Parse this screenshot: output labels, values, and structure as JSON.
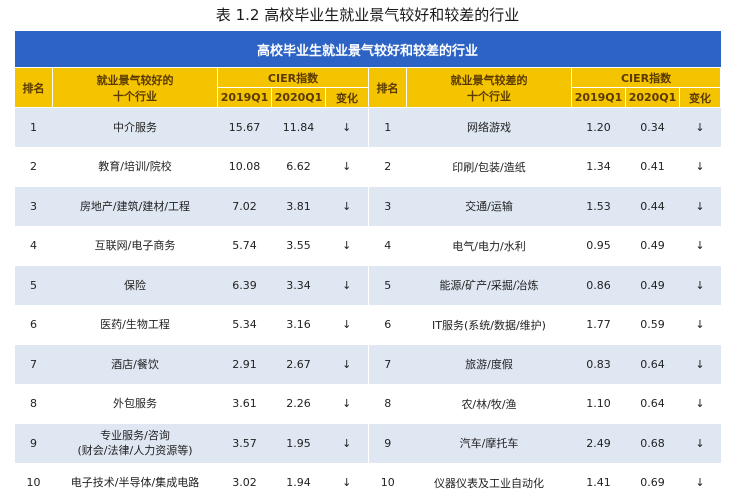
{
  "caption": "表 1.2  高校毕业生就业景气较好和较差的行业",
  "banner": "高校毕业生就业景气较好和较差的行业",
  "headers": {
    "rank": "排名",
    "good_industry_l1": "就业景气较好的",
    "good_industry_l2": "十个行业",
    "bad_industry_l1": "就业景气较差的",
    "bad_industry_l2": "十个行业",
    "cier": "CIER指数",
    "q2019": "2019Q1",
    "q2020": "2020Q1",
    "change": "变化"
  },
  "rows": [
    {
      "rank_good": "1",
      "good": "中介服务",
      "good_2019": "15.67",
      "good_2020": "11.84",
      "good_change": "↓",
      "rank_bad": "1",
      "bad": "网络游戏",
      "bad_2019": "1.20",
      "bad_2020": "0.34",
      "bad_change": "↓"
    },
    {
      "rank_good": "2",
      "good": "教育/培训/院校",
      "good_2019": "10.08",
      "good_2020": "6.62",
      "good_change": "↓",
      "rank_bad": "2",
      "bad": "印刷/包装/造纸",
      "bad_2019": "1.34",
      "bad_2020": "0.41",
      "bad_change": "↓"
    },
    {
      "rank_good": "3",
      "good": "房地产/建筑/建材/工程",
      "good_2019": "7.02",
      "good_2020": "3.81",
      "good_change": "↓",
      "rank_bad": "3",
      "bad": "交通/运输",
      "bad_2019": "1.53",
      "bad_2020": "0.44",
      "bad_change": "↓"
    },
    {
      "rank_good": "4",
      "good": "互联网/电子商务",
      "good_2019": "5.74",
      "good_2020": "3.55",
      "good_change": "↓",
      "rank_bad": "4",
      "bad": "电气/电力/水利",
      "bad_2019": "0.95",
      "bad_2020": "0.49",
      "bad_change": "↓"
    },
    {
      "rank_good": "5",
      "good": "保险",
      "good_2019": "6.39",
      "good_2020": "3.34",
      "good_change": "↓",
      "rank_bad": "5",
      "bad": "能源/矿产/采掘/冶炼",
      "bad_2019": "0.86",
      "bad_2020": "0.49",
      "bad_change": "↓"
    },
    {
      "rank_good": "6",
      "good": "医药/生物工程",
      "good_2019": "5.34",
      "good_2020": "3.16",
      "good_change": "↓",
      "rank_bad": "6",
      "bad": "IT服务(系统/数据/维护)",
      "bad_2019": "1.77",
      "bad_2020": "0.59",
      "bad_change": "↓"
    },
    {
      "rank_good": "7",
      "good": "酒店/餐饮",
      "good_2019": "2.91",
      "good_2020": "2.67",
      "good_change": "↓",
      "rank_bad": "7",
      "bad": "旅游/度假",
      "bad_2019": "0.83",
      "bad_2020": "0.64",
      "bad_change": "↓"
    },
    {
      "rank_good": "8",
      "good": "外包服务",
      "good_2019": "3.61",
      "good_2020": "2.26",
      "good_change": "↓",
      "rank_bad": "8",
      "bad": "农/林/牧/渔",
      "bad_2019": "1.10",
      "bad_2020": "0.64",
      "bad_change": "↓"
    },
    {
      "rank_good": "9",
      "good": "专业服务/咨询\n(财会/法律/人力资源等)",
      "good_2019": "3.57",
      "good_2020": "1.95",
      "good_change": "↓",
      "rank_bad": "9",
      "bad": "汽车/摩托车",
      "bad_2019": "2.49",
      "bad_2020": "0.68",
      "bad_change": "↓"
    },
    {
      "rank_good": "10",
      "good": "电子技术/半导体/集成电路",
      "good_2019": "3.02",
      "good_2020": "1.94",
      "good_change": "↓",
      "rank_bad": "10",
      "bad": "仪器仪表及工业自动化",
      "bad_2019": "1.41",
      "bad_2020": "0.69",
      "bad_change": "↓"
    }
  ]
}
